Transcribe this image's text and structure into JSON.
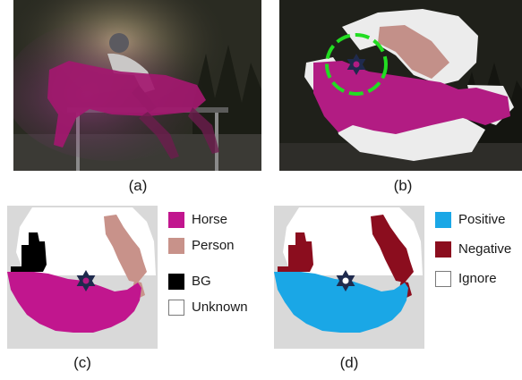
{
  "panels": {
    "a": {
      "caption": "(a)"
    },
    "b": {
      "caption": "(b)"
    },
    "c": {
      "caption": "(c)"
    },
    "d": {
      "caption": "(d)"
    }
  },
  "legend_c": [
    {
      "label": "Horse",
      "color": "#c1168e"
    },
    {
      "label": "Person",
      "color": "#c8928a"
    },
    {
      "label": "BG",
      "color": "#000000"
    },
    {
      "label": "Unknown",
      "color": "#ffffff"
    }
  ],
  "legend_d": [
    {
      "label": "Positive",
      "color": "#1aa7e6"
    },
    {
      "label": "Negative",
      "color": "#8b0d1e"
    },
    {
      "label": "Ignore",
      "color": "#ffffff"
    }
  ],
  "colors": {
    "horse": "#c1168e",
    "person": "#c8928a",
    "bg": "#000000",
    "unknown": "#ffffff",
    "outside": "#d9d9d9",
    "positive": "#1aa7e6",
    "negative": "#8b0d1e",
    "click_ring": "#22dd22",
    "star": "#1f2a4d"
  }
}
